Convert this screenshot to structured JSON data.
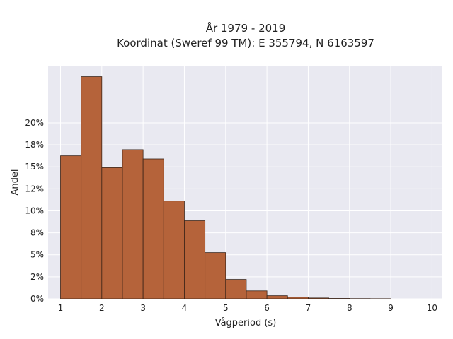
{
  "chart_data": {
    "type": "bar",
    "title_lines": [
      "År 1979 - 2019",
      "Koordinat (Sweref 99 TM): E 355794, N 6163597"
    ],
    "xlabel": "Vågperiod (s)",
    "ylabel": "Andel",
    "bin_width": 0.5,
    "bin_starts": [
      1.0,
      1.5,
      2.0,
      2.5,
      3.0,
      3.5,
      4.0,
      4.5,
      5.0,
      5.5,
      6.0,
      6.5,
      7.0,
      7.5,
      8.0,
      8.5
    ],
    "values": [
      0.1625,
      0.2525,
      0.149,
      0.1695,
      0.159,
      0.1111,
      0.0887,
      0.0525,
      0.022,
      0.009,
      0.0035,
      0.0018,
      0.0009,
      0.0004,
      0.0002,
      0.0001
    ],
    "xlim": [
      0.7,
      10.25
    ],
    "ylim": [
      0,
      0.265
    ],
    "x_ticks": [
      1,
      2,
      3,
      4,
      5,
      6,
      7,
      8,
      9,
      10
    ],
    "y_ticks": [
      0,
      0.025,
      0.05,
      0.075,
      0.1,
      0.125,
      0.15,
      0.175,
      0.2
    ],
    "y_tick_labels": [
      "0%",
      "2%",
      "5%",
      "8%",
      "10%",
      "12%",
      "15%",
      "18%",
      "20%"
    ],
    "grid": true,
    "colors": {
      "bar_fill": "#b5633a",
      "bar_stroke": "#3a2418",
      "plot_background": "#e9e9f1",
      "grid": "#ffffff"
    }
  }
}
